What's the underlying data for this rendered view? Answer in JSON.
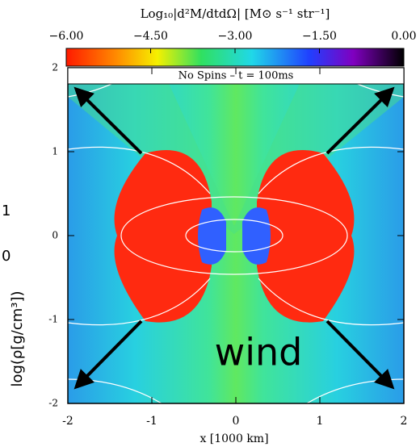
{
  "chart_data": {
    "type": "field",
    "colorbar": {
      "label": "Log₁₀|d²M/dtdΩ| [M⊙ s⁻¹ str⁻¹]",
      "lim": [
        -6,
        0
      ],
      "ticks": [
        {
          "value": -6,
          "label": "−6.00"
        },
        {
          "value": -4.5,
          "label": "−4.50"
        },
        {
          "value": -3,
          "label": "−3.00"
        },
        {
          "value": -1.5,
          "label": "−1.50"
        },
        {
          "value": 0,
          "label": "0.00"
        }
      ]
    },
    "panel_label": "No Spins – t = 100ms",
    "annotation": "wind",
    "xlabel": "x [1000 km]",
    "xlim": [
      -2,
      2
    ],
    "xticks": [
      -2,
      -1,
      0,
      1,
      2
    ],
    "ylim": [
      -2,
      2
    ],
    "yticks": [
      -2,
      -1,
      0,
      1,
      2
    ],
    "side_ylabel": "log(ρ[g/cm³])",
    "side_ticks": [
      1,
      0
    ]
  }
}
